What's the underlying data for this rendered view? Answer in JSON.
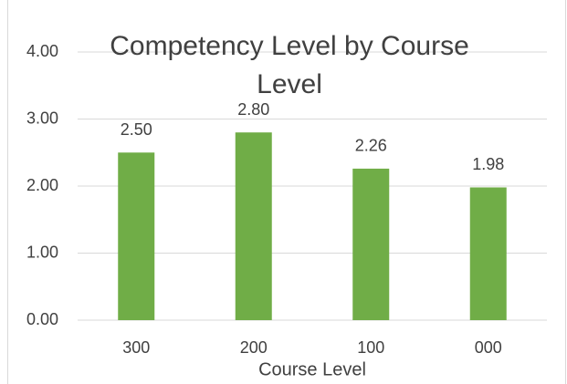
{
  "chart_data": {
    "type": "bar",
    "title": "Competency Level by Course Level",
    "categories": [
      "300",
      "200",
      "100",
      "000"
    ],
    "values": [
      2.5,
      2.8,
      2.26,
      1.98
    ],
    "value_labels": [
      "2.50",
      "2.80",
      "2.26",
      "1.98"
    ],
    "color": "#70ad47",
    "x_label": "Course Level",
    "ylim": [
      0,
      4
    ],
    "yticks": [
      {
        "value": 0,
        "label": "0.00"
      },
      {
        "value": 1,
        "label": "1.00"
      },
      {
        "value": 2,
        "label": "2.00"
      },
      {
        "value": 3,
        "label": "3.00"
      },
      {
        "value": 4,
        "label": "4.00"
      }
    ],
    "grid": true
  }
}
